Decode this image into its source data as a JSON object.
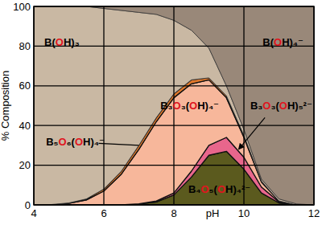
{
  "chart_data": {
    "type": "area",
    "stacked": true,
    "grid": true,
    "x_label": "pH",
    "y_label": "% Composition",
    "x": [
      4,
      4.5,
      5,
      5.5,
      6,
      6.5,
      7,
      7.5,
      8,
      8.5,
      9,
      9.5,
      10,
      10.5,
      11,
      11.5,
      12
    ],
    "xlim": [
      4,
      12
    ],
    "xticks": [
      4,
      6,
      8,
      10,
      12
    ],
    "ylim": [
      0,
      100
    ],
    "yticks": [
      0,
      20,
      40,
      60,
      80,
      100
    ],
    "series": [
      {
        "name": "B₄O₅(OH)₄²⁻",
        "color": "#5b5a1e",
        "values": [
          0,
          0,
          0,
          0,
          0,
          0,
          0.5,
          1.5,
          5,
          14,
          25,
          27,
          18,
          6,
          1,
          0,
          0
        ]
      },
      {
        "name": "B₃O₃(OH)₅²⁻",
        "color": "#e8668c",
        "values": [
          0,
          0,
          0,
          0,
          0,
          0,
          0,
          0.5,
          1,
          3,
          5,
          7,
          6,
          3,
          0.5,
          0,
          0
        ]
      },
      {
        "name": "B₃O₃(OH)₄⁻",
        "color": "#f7b79b",
        "values": [
          0,
          0.2,
          0.8,
          2.5,
          7,
          15.5,
          27.5,
          40,
          48,
          44,
          33,
          20,
          10,
          2.5,
          0.5,
          0,
          0
        ]
      },
      {
        "name": "B₅O₆(OH)₄⁻",
        "color": "#e0782c",
        "values": [
          0,
          0,
          0.2,
          0.5,
          1,
          1.5,
          2,
          2,
          2,
          2,
          1,
          1,
          1,
          0.5,
          0,
          0,
          0
        ]
      },
      {
        "name": "B(OH)₃",
        "color": "#c9b8a3",
        "values": [
          100,
          99.8,
          99,
          97,
          91,
          81,
          67,
          52,
          37,
          25,
          15,
          5,
          3,
          1,
          1,
          0.5,
          0
        ]
      },
      {
        "name": "B(OH)₄⁻",
        "color": "#998879",
        "values": [
          0,
          0,
          0,
          0,
          1,
          2,
          3,
          4,
          7,
          12,
          21,
          40,
          62,
          87,
          97,
          99.5,
          100
        ]
      }
    ]
  }
}
